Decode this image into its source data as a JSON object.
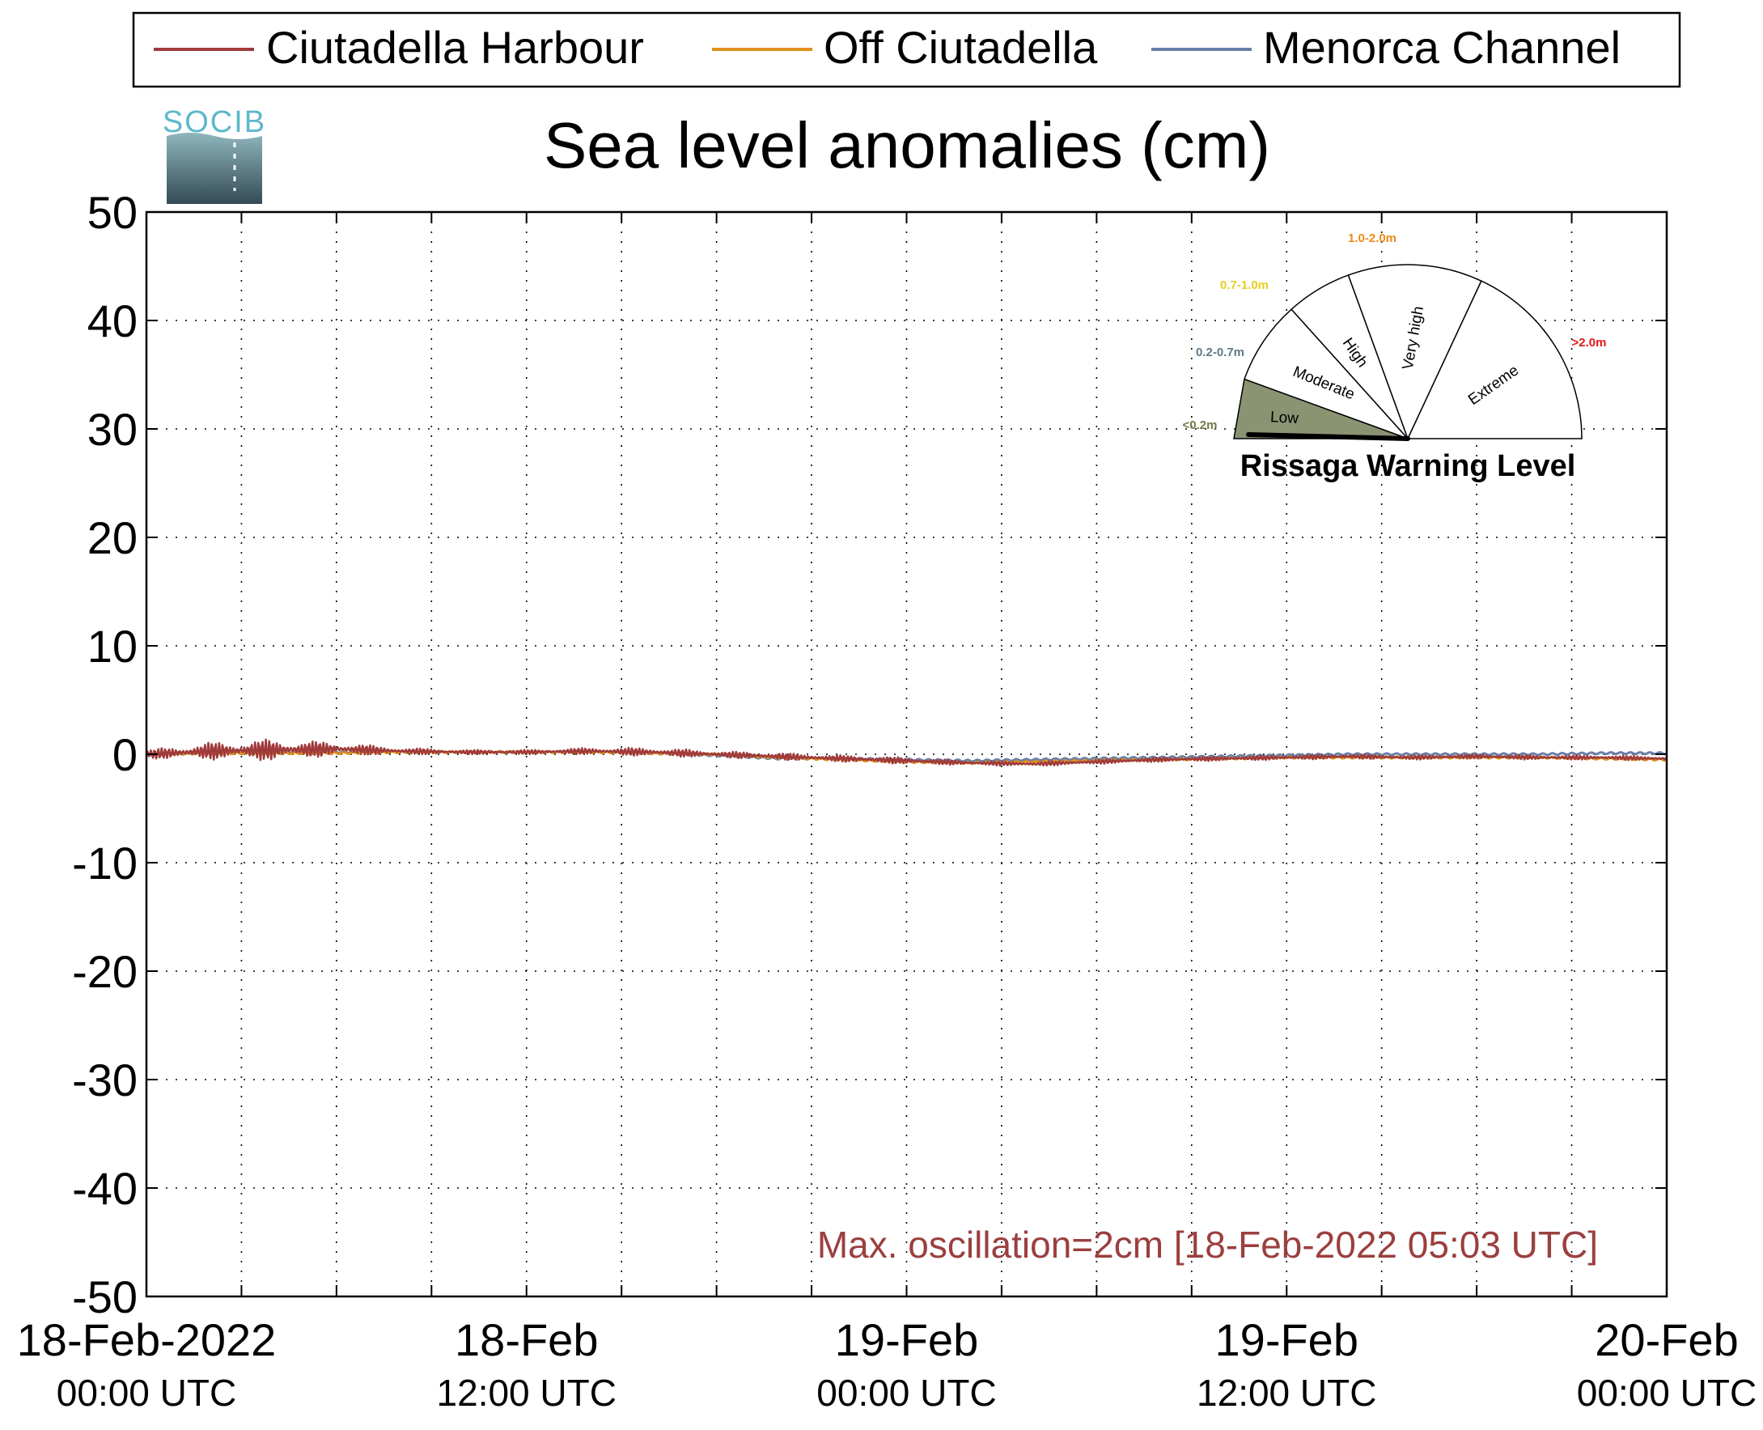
{
  "legend": {
    "entries": [
      {
        "label": "Ciutadella Harbour",
        "color": "#a03a3a"
      },
      {
        "label": "Off Ciutadella",
        "color": "#e0901e"
      },
      {
        "label": "Menorca Channel",
        "color": "#6b7fa8"
      }
    ]
  },
  "logo": {
    "text": "SOCIB"
  },
  "chart_data": {
    "type": "line",
    "title": "Sea level anomalies (cm)",
    "xlabel": "",
    "ylabel": "",
    "ylim": [
      -50,
      50
    ],
    "yticks": [
      50,
      40,
      30,
      20,
      10,
      0,
      -10,
      -20,
      -30,
      -40,
      -50
    ],
    "x_range_hours": [
      0,
      48
    ],
    "xticks": [
      {
        "line1": "18-Feb-2022",
        "line2": "00:00 UTC"
      },
      {
        "line1": "18-Feb",
        "line2": "12:00 UTC"
      },
      {
        "line1": "19-Feb",
        "line2": "00:00 UTC"
      },
      {
        "line1": "19-Feb",
        "line2": "12:00 UTC"
      },
      {
        "line1": "20-Feb",
        "line2": "00:00 UTC"
      }
    ],
    "grid": true,
    "legend_position": "top",
    "series": [
      {
        "name": "Ciutadella Harbour",
        "color": "#a03a3a",
        "x": [
          0,
          2,
          4,
          6,
          8,
          10,
          12,
          14,
          16,
          18,
          20,
          22,
          24,
          26,
          28,
          30,
          32,
          34,
          36,
          38,
          40,
          42,
          44,
          46,
          48
        ],
        "y": [
          0.0,
          0.3,
          0.4,
          0.5,
          0.3,
          0.2,
          0.2,
          0.3,
          0.2,
          0.0,
          -0.2,
          -0.4,
          -0.6,
          -0.8,
          -0.9,
          -0.7,
          -0.5,
          -0.4,
          -0.3,
          -0.2,
          -0.3,
          -0.2,
          -0.3,
          -0.3,
          -0.4
        ],
        "oscillation_amplitude": [
          0.4,
          0.8,
          1.0,
          0.6,
          0.3,
          0.2,
          0.2,
          0.3,
          0.4,
          0.3,
          0.3,
          0.3,
          0.3,
          0.2,
          0.2,
          0.2,
          0.2,
          0.2,
          0.2,
          0.2,
          0.2,
          0.2,
          0.2,
          0.2,
          0.2
        ]
      },
      {
        "name": "Off Ciutadella",
        "color": "#e0901e",
        "x": [
          0,
          2,
          4,
          6,
          8,
          10,
          12,
          14,
          16,
          18,
          20,
          22,
          24,
          26,
          28,
          30,
          32,
          34,
          36,
          38,
          40,
          42,
          44,
          46,
          48
        ],
        "y": [
          0.0,
          0.1,
          0.1,
          0.1,
          0.2,
          0.2,
          0.2,
          0.2,
          0.1,
          0.0,
          -0.3,
          -0.5,
          -0.7,
          -0.8,
          -0.7,
          -0.6,
          -0.5,
          -0.4,
          -0.3,
          -0.3,
          -0.3,
          -0.3,
          -0.3,
          -0.4,
          -0.5
        ]
      },
      {
        "name": "Menorca Channel",
        "color": "#6b7fa8",
        "x": [
          0,
          2,
          4,
          6,
          8,
          10,
          12,
          14,
          16,
          18,
          20,
          22,
          24,
          26,
          28,
          30,
          32,
          34,
          36,
          38,
          40,
          42,
          44,
          46,
          48
        ],
        "y": [
          0.0,
          0.1,
          0.2,
          0.2,
          0.2,
          0.2,
          0.2,
          0.2,
          0.1,
          -0.1,
          -0.4,
          -0.4,
          -0.5,
          -0.6,
          -0.5,
          -0.4,
          -0.3,
          -0.2,
          -0.1,
          0.0,
          0.0,
          0.0,
          0.0,
          0.1,
          0.1
        ]
      }
    ],
    "annotation": {
      "text": "Max. oscillation=2cm [18-Feb-2022 05:03 UTC]",
      "color": "#9b3f3f"
    }
  },
  "gauge": {
    "title": "Rissaga Warning Level",
    "needle_value_m": 0.02,
    "sectors": [
      {
        "label": "Low",
        "range": "<0.2m",
        "range_color": "#6e7a4a",
        "fill": "#8a9472",
        "active": true
      },
      {
        "label": "Moderate",
        "range": "0.2-0.7m",
        "range_color": "#5a7a8a",
        "fill": "#ffffff",
        "active": false
      },
      {
        "label": "High",
        "range": "0.7-1.0m",
        "range_color": "#e6d020",
        "fill": "#ffffff",
        "active": false
      },
      {
        "label": "Very high",
        "range": "1.0-2.0m",
        "range_color": "#ee8a1a",
        "fill": "#ffffff",
        "active": false
      },
      {
        "label": "Extreme",
        "range": ">2.0m",
        "range_color": "#e01818",
        "fill": "#ffffff",
        "active": false
      }
    ]
  }
}
